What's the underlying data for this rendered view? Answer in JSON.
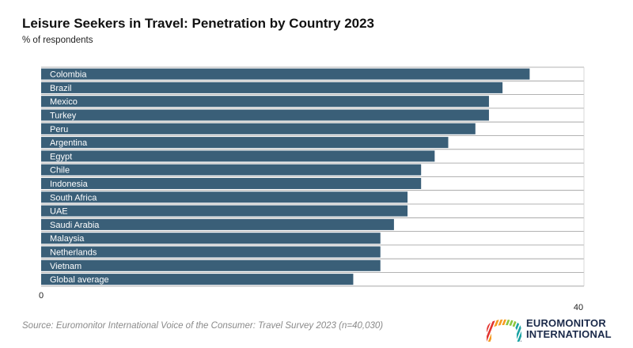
{
  "title": "Leisure Seekers in Travel: Penetration by Country 2023",
  "subtitle": "% of respondents",
  "source": "Source: Euromonitor International Voice of the Consumer: Travel Survey 2023 (n=40,030)",
  "logo": {
    "line1": "EUROMONITOR",
    "line2": "INTERNATIONAL",
    "icon": "striped-arch-logo"
  },
  "colors": {
    "bar": "#3a5f78",
    "gridline": "#9a9a9a",
    "logo_stripes": [
      "#e3342f",
      "#f59a1f",
      "#8cc63f",
      "#1aa3a3",
      "#1b2a4a"
    ]
  },
  "chart_data": {
    "type": "bar",
    "orientation": "horizontal",
    "categories": [
      "Colombia",
      "Brazil",
      "Mexico",
      "Turkey",
      "Peru",
      "Argentina",
      "Egypt",
      "Chile",
      "Indonesia",
      "South Africa",
      "UAE",
      "Saudi Arabia",
      "Malaysia",
      "Netherlands",
      "Vietnam",
      "Global average"
    ],
    "values": [
      36,
      34,
      33,
      33,
      32,
      30,
      29,
      28,
      28,
      27,
      27,
      26,
      25,
      25,
      25,
      23
    ],
    "xlim": [
      0,
      40
    ],
    "tick_labels": [
      "0",
      "40"
    ],
    "title": "Leisure Seekers in Travel: Penetration by Country 2023",
    "subtitle": "% of respondents",
    "grid": true
  }
}
